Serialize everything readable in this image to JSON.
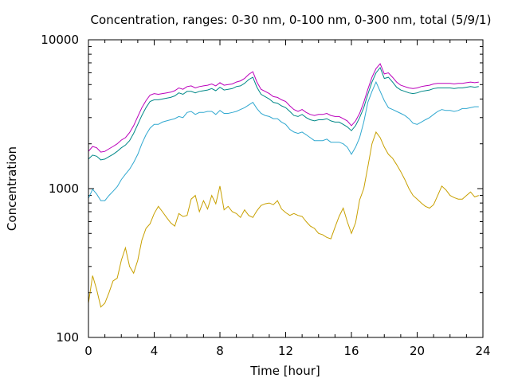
{
  "chart_data": {
    "type": "line",
    "title": "Concentration, ranges: 0-30 nm, 0-100 nm, 0-300 nm, total (5/9/1)",
    "xlabel": "Time [hour]",
    "ylabel": "Concentration",
    "xlim": [
      0,
      24
    ],
    "ylim": [
      100,
      10000
    ],
    "y_scale": "log",
    "x_ticks": [
      0,
      4,
      8,
      12,
      16,
      20,
      24
    ],
    "x_tick_labels": [
      "0",
      "4",
      "8",
      "12",
      "16",
      "20",
      "24"
    ],
    "y_ticks": [
      100,
      1000,
      10000
    ],
    "y_tick_labels": [
      "100",
      "1000",
      "10000"
    ],
    "grid": false,
    "legend": "none",
    "series": [
      {
        "color": "#c8a000",
        "x": [
          0,
          0.25,
          0.5,
          0.75,
          1,
          1.25,
          1.5,
          1.75,
          2,
          2.25,
          2.5,
          2.75,
          3,
          3.25,
          3.5,
          3.75,
          4,
          4.25,
          4.5,
          4.75,
          5,
          5.25,
          5.5,
          5.75,
          6,
          6.25,
          6.5,
          6.75,
          7,
          7.25,
          7.5,
          7.75,
          8,
          8.25,
          8.5,
          8.75,
          9,
          9.25,
          9.5,
          9.75,
          10,
          10.25,
          10.5,
          10.75,
          11,
          11.25,
          11.5,
          11.75,
          12,
          12.25,
          12.5,
          12.75,
          13,
          13.25,
          13.5,
          13.75,
          14,
          14.25,
          14.5,
          14.75,
          15,
          15.25,
          15.5,
          15.75,
          16,
          16.25,
          16.5,
          16.75,
          17,
          17.25,
          17.5,
          17.75,
          18,
          18.25,
          18.5,
          18.75,
          19,
          19.25,
          19.5,
          19.75,
          20,
          20.25,
          20.5,
          20.75,
          21,
          21.25,
          21.5,
          21.75,
          22,
          22.25,
          22.5,
          22.75,
          23,
          23.25,
          23.5,
          23.75
        ],
        "y": [
          170,
          260,
          210,
          160,
          170,
          200,
          240,
          250,
          330,
          400,
          300,
          270,
          330,
          450,
          540,
          580,
          680,
          760,
          700,
          640,
          590,
          560,
          680,
          650,
          660,
          850,
          900,
          700,
          830,
          730,
          900,
          790,
          1040,
          720,
          760,
          700,
          680,
          640,
          720,
          660,
          640,
          710,
          770,
          790,
          800,
          780,
          830,
          730,
          690,
          660,
          680,
          660,
          650,
          600,
          560,
          540,
          500,
          490,
          470,
          460,
          550,
          650,
          740,
          600,
          500,
          590,
          840,
          1000,
          1400,
          2000,
          2400,
          2200,
          1900,
          1700,
          1600,
          1450,
          1300,
          1150,
          1000,
          900,
          850,
          800,
          760,
          740,
          780,
          900,
          1040,
          980,
          900,
          870,
          850,
          850,
          900,
          950,
          880,
          900
        ]
      },
      {
        "color": "#30a8d0",
        "x": [
          0,
          0.25,
          0.5,
          0.75,
          1,
          1.25,
          1.5,
          1.75,
          2,
          2.25,
          2.5,
          2.75,
          3,
          3.25,
          3.5,
          3.75,
          4,
          4.25,
          4.5,
          4.75,
          5,
          5.25,
          5.5,
          5.75,
          6,
          6.25,
          6.5,
          6.75,
          7,
          7.25,
          7.5,
          7.75,
          8,
          8.25,
          8.5,
          8.75,
          9,
          9.25,
          9.5,
          9.75,
          10,
          10.25,
          10.5,
          10.75,
          11,
          11.25,
          11.5,
          11.75,
          12,
          12.25,
          12.5,
          12.75,
          13,
          13.25,
          13.5,
          13.75,
          14,
          14.25,
          14.5,
          14.75,
          15,
          15.25,
          15.5,
          15.75,
          16,
          16.25,
          16.5,
          16.75,
          17,
          17.25,
          17.5,
          17.75,
          18,
          18.25,
          18.5,
          18.75,
          19,
          19.25,
          19.5,
          19.75,
          20,
          20.25,
          20.5,
          20.75,
          21,
          21.25,
          21.5,
          21.75,
          22,
          22.25,
          22.5,
          22.75,
          23,
          23.25,
          23.5,
          23.75
        ],
        "y": [
          860,
          990,
          920,
          830,
          830,
          900,
          960,
          1030,
          1150,
          1250,
          1350,
          1500,
          1700,
          2000,
          2300,
          2550,
          2700,
          2700,
          2800,
          2850,
          2900,
          2950,
          3050,
          3000,
          3250,
          3300,
          3150,
          3250,
          3250,
          3300,
          3300,
          3150,
          3350,
          3200,
          3200,
          3250,
          3300,
          3400,
          3500,
          3650,
          3800,
          3450,
          3200,
          3100,
          3050,
          2950,
          2950,
          2800,
          2700,
          2500,
          2400,
          2350,
          2400,
          2300,
          2200,
          2100,
          2100,
          2100,
          2150,
          2050,
          2050,
          2050,
          2000,
          1900,
          1700,
          1900,
          2200,
          2800,
          3800,
          4500,
          5200,
          4500,
          3900,
          3500,
          3400,
          3300,
          3200,
          3100,
          2950,
          2750,
          2700,
          2800,
          2900,
          3000,
          3150,
          3300,
          3400,
          3350,
          3350,
          3300,
          3350,
          3450,
          3450,
          3500,
          3550,
          3550
        ]
      },
      {
        "color": "#008888",
        "x": [
          0,
          0.25,
          0.5,
          0.75,
          1,
          1.25,
          1.5,
          1.75,
          2,
          2.25,
          2.5,
          2.75,
          3,
          3.25,
          3.5,
          3.75,
          4,
          4.25,
          4.5,
          4.75,
          5,
          5.25,
          5.5,
          5.75,
          6,
          6.25,
          6.5,
          6.75,
          7,
          7.25,
          7.5,
          7.75,
          8,
          8.25,
          8.5,
          8.75,
          9,
          9.25,
          9.5,
          9.75,
          10,
          10.25,
          10.5,
          10.75,
          11,
          11.25,
          11.5,
          11.75,
          12,
          12.25,
          12.5,
          12.75,
          13,
          13.25,
          13.5,
          13.75,
          14,
          14.25,
          14.5,
          14.75,
          15,
          15.25,
          15.5,
          15.75,
          16,
          16.25,
          16.5,
          16.75,
          17,
          17.25,
          17.5,
          17.75,
          18,
          18.25,
          18.5,
          18.75,
          19,
          19.25,
          19.5,
          19.75,
          20,
          20.25,
          20.5,
          20.75,
          21,
          21.25,
          21.5,
          21.75,
          22,
          22.25,
          22.5,
          22.75,
          23,
          23.25,
          23.5,
          23.75
        ],
        "y": [
          1580,
          1680,
          1650,
          1560,
          1580,
          1640,
          1700,
          1780,
          1880,
          1960,
          2100,
          2350,
          2700,
          3100,
          3500,
          3850,
          3950,
          3950,
          4000,
          4050,
          4100,
          4200,
          4400,
          4300,
          4500,
          4500,
          4400,
          4500,
          4550,
          4600,
          4700,
          4550,
          4800,
          4600,
          4650,
          4700,
          4850,
          4900,
          5100,
          5400,
          5600,
          4800,
          4300,
          4150,
          4000,
          3800,
          3750,
          3600,
          3500,
          3300,
          3100,
          3050,
          3150,
          3000,
          2900,
          2850,
          2900,
          2900,
          2950,
          2850,
          2800,
          2800,
          2700,
          2600,
          2450,
          2650,
          3000,
          3500,
          4300,
          5200,
          6000,
          6500,
          5500,
          5600,
          5200,
          4800,
          4600,
          4500,
          4400,
          4350,
          4400,
          4500,
          4550,
          4600,
          4700,
          4750,
          4750,
          4750,
          4750,
          4700,
          4750,
          4750,
          4800,
          4850,
          4800,
          4850
        ]
      },
      {
        "color": "#bb00bb",
        "x": [
          0,
          0.25,
          0.5,
          0.75,
          1,
          1.25,
          1.5,
          1.75,
          2,
          2.25,
          2.5,
          2.75,
          3,
          3.25,
          3.5,
          3.75,
          4,
          4.25,
          4.5,
          4.75,
          5,
          5.25,
          5.5,
          5.75,
          6,
          6.25,
          6.5,
          6.75,
          7,
          7.25,
          7.5,
          7.75,
          8,
          8.25,
          8.5,
          8.75,
          9,
          9.25,
          9.5,
          9.75,
          10,
          10.25,
          10.5,
          10.75,
          11,
          11.25,
          11.5,
          11.75,
          12,
          12.25,
          12.5,
          12.75,
          13,
          13.25,
          13.5,
          13.75,
          14,
          14.25,
          14.5,
          14.75,
          15,
          15.25,
          15.5,
          15.75,
          16,
          16.25,
          16.5,
          16.75,
          17,
          17.25,
          17.5,
          17.75,
          18,
          18.25,
          18.5,
          18.75,
          19,
          19.25,
          19.5,
          19.75,
          20,
          20.25,
          20.5,
          20.75,
          21,
          21.25,
          21.5,
          21.75,
          22,
          22.25,
          22.5,
          22.75,
          23,
          23.25,
          23.5,
          23.75
        ],
        "y": [
          1780,
          1920,
          1880,
          1760,
          1780,
          1850,
          1920,
          2000,
          2120,
          2200,
          2380,
          2650,
          3050,
          3500,
          3900,
          4250,
          4350,
          4300,
          4350,
          4400,
          4450,
          4550,
          4750,
          4650,
          4850,
          4900,
          4750,
          4850,
          4900,
          4950,
          5050,
          4900,
          5150,
          4950,
          5000,
          5050,
          5200,
          5300,
          5500,
          5850,
          6100,
          5200,
          4650,
          4500,
          4350,
          4150,
          4100,
          3950,
          3850,
          3600,
          3400,
          3300,
          3400,
          3250,
          3150,
          3100,
          3150,
          3150,
          3200,
          3100,
          3050,
          3050,
          2950,
          2850,
          2650,
          2850,
          3200,
          3800,
          4650,
          5600,
          6400,
          6900,
          5900,
          6000,
          5600,
          5200,
          4950,
          4850,
          4750,
          4700,
          4750,
          4850,
          4900,
          4950,
          5050,
          5100,
          5100,
          5100,
          5100,
          5050,
          5100,
          5100,
          5150,
          5200,
          5150,
          5200
        ]
      }
    ]
  }
}
